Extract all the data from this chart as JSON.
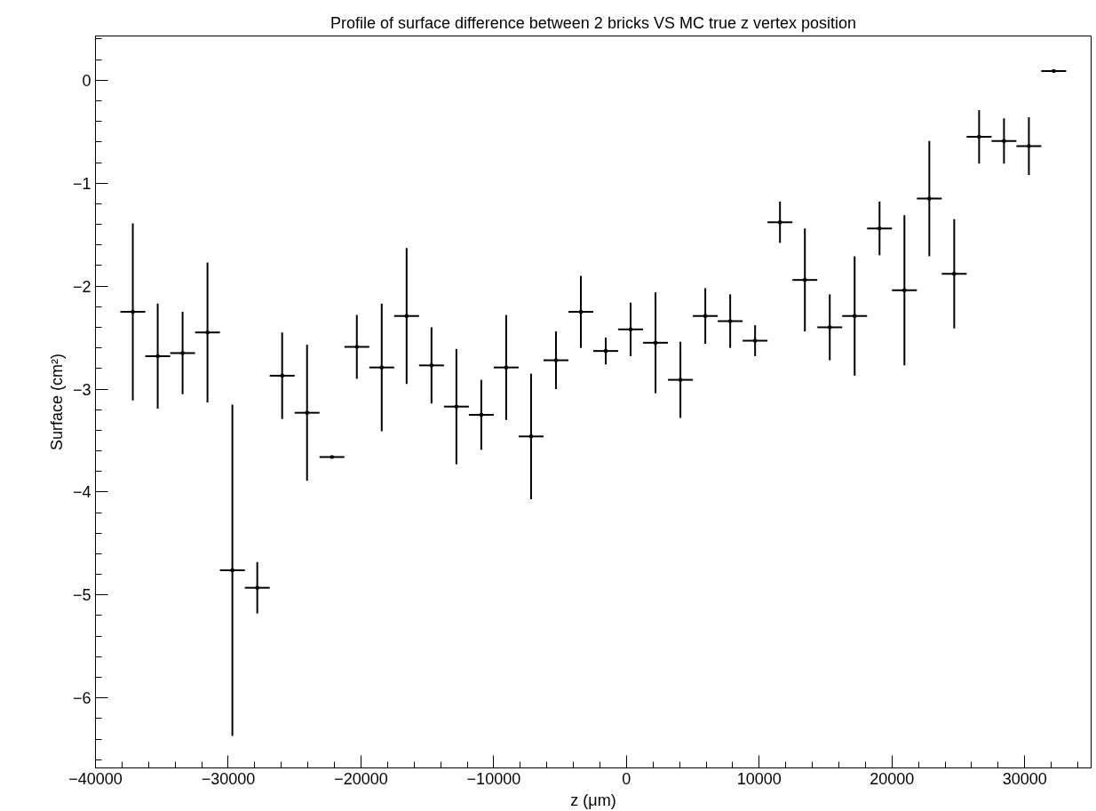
{
  "chart_data": {
    "type": "scatter",
    "title": "Profile of surface difference between 2 bricks VS MC true z vertex position",
    "xlabel": "z (μm)",
    "ylabel": "Surface (cm²)",
    "xlim": [
      -40000,
      35000
    ],
    "ylim": [
      -6.68,
      0.43
    ],
    "xticks": [
      -40000,
      -30000,
      -20000,
      -10000,
      0,
      10000,
      20000,
      30000
    ],
    "yticks": [
      -6,
      -5,
      -4,
      -3,
      -2,
      -1,
      0
    ],
    "grid": false,
    "series": [
      {
        "color": "#000000",
        "x": [
          -37187.5,
          -35312.5,
          -33437.5,
          -31562.5,
          -29687.5,
          -27812.5,
          -25937.5,
          -24062.5,
          -22187.5,
          -20312.5,
          -18437.5,
          -16562.5,
          -14687.5,
          -12812.5,
          -10937.5,
          -9062.5,
          -7187.5,
          -5312.5,
          -3437.5,
          -1562.5,
          312.5,
          2187.5,
          4062.5,
          5937.5,
          7812.5,
          9687.5,
          11562.5,
          13437.5,
          15312.5,
          17187.5,
          19062.5,
          20937.5,
          22812.5,
          24687.5,
          26562.5,
          28437.5,
          30312.5,
          32187.5
        ],
        "values": [
          -2.25,
          -2.68,
          -2.65,
          -2.45,
          -4.76,
          -4.93,
          -2.87,
          -3.23,
          -3.66,
          -2.59,
          -2.79,
          -2.29,
          -2.77,
          -3.17,
          -3.25,
          -2.79,
          -3.46,
          -2.72,
          -2.25,
          -2.63,
          -2.42,
          -2.55,
          -2.91,
          -2.29,
          -2.34,
          -2.53,
          -1.38,
          -1.94,
          -2.4,
          -2.29,
          -1.44,
          -2.04,
          -1.15,
          -1.88,
          -0.55,
          -0.59,
          -0.64,
          0.09
        ],
        "errors": [
          0.86,
          0.51,
          0.4,
          0.68,
          1.61,
          0.25,
          0.42,
          0.66,
          0,
          0.31,
          0.62,
          0.66,
          0.37,
          0.56,
          0.34,
          0.51,
          0.61,
          0.28,
          0.35,
          0.13,
          0.26,
          0.49,
          0.37,
          0.27,
          0.26,
          0.15,
          0.2,
          0.5,
          0.32,
          0.58,
          0.26,
          0.73,
          0.56,
          0.53,
          0.26,
          0.22,
          0.28,
          0
        ],
        "xerrors": [
          937.5,
          937.5,
          937.5,
          937.5,
          937.5,
          937.5,
          937.5,
          937.5,
          937.5,
          937.5,
          937.5,
          937.5,
          937.5,
          937.5,
          937.5,
          937.5,
          937.5,
          937.5,
          937.5,
          937.5,
          937.5,
          937.5,
          937.5,
          937.5,
          937.5,
          937.5,
          937.5,
          937.5,
          937.5,
          937.5,
          937.5,
          937.5,
          937.5,
          937.5,
          937.5,
          937.5,
          937.5,
          937.5
        ]
      }
    ]
  }
}
